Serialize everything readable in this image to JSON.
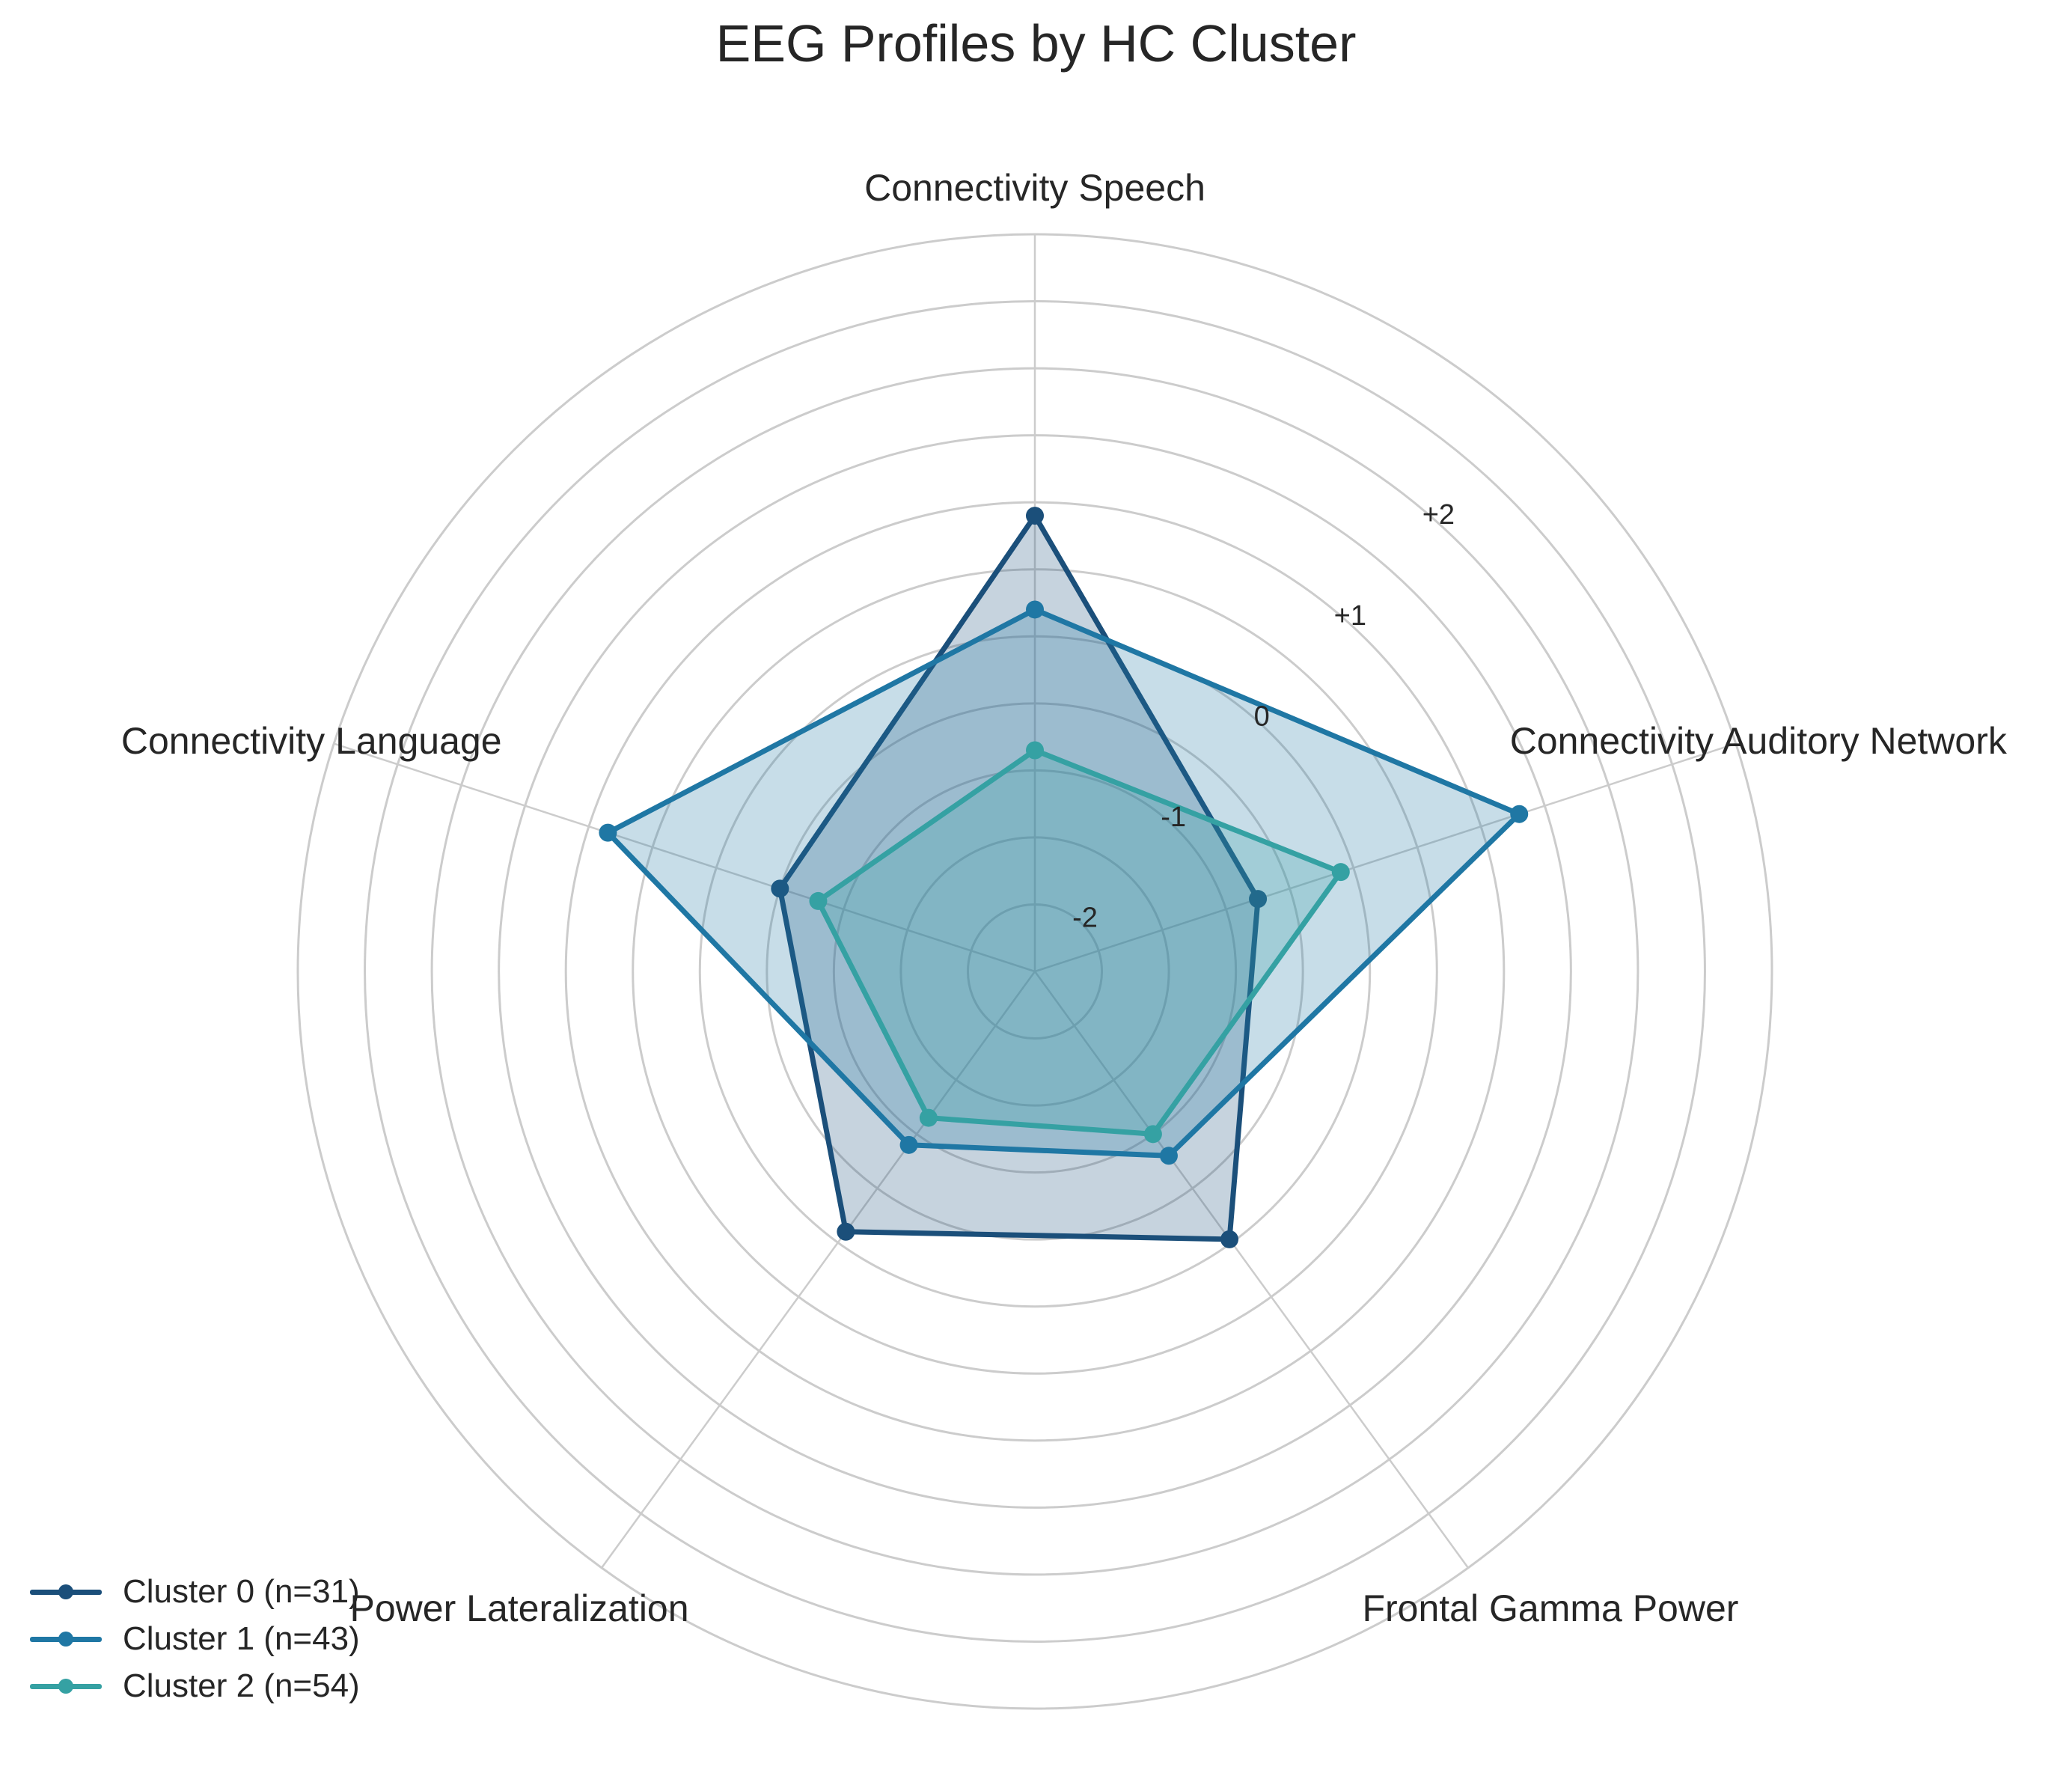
{
  "chart_data": {
    "type": "radar",
    "title": "EEG Profiles by HC Cluster",
    "axes": [
      "Connectivity Speech",
      "Connectivity Auditory Network",
      "Frontal Gamma Power",
      "Power Lateralization",
      "Connectivity Language"
    ],
    "r_ticks": [
      -2,
      -1,
      0,
      1,
      2
    ],
    "r_tick_labels": [
      "-2",
      "-1",
      "0",
      "+1",
      "+2"
    ],
    "r_range": [
      -2.5,
      3.0
    ],
    "grid": true,
    "legend_position": "lower-left",
    "series": [
      {
        "name": "Cluster 0 (n=31)",
        "color": "#1b4f7a",
        "values": [
          0.9,
          -0.75,
          -0.03,
          -0.1,
          -0.5
        ]
      },
      {
        "name": "Cluster 1 (n=43)",
        "color": "#1f77a4",
        "values": [
          0.2,
          1.3,
          -0.8,
          -0.9,
          0.85
        ]
      },
      {
        "name": "Cluster 2 (n=54)",
        "color": "#35a1a3",
        "values": [
          -0.85,
          -0.1,
          -1.0,
          -1.15,
          -0.8
        ]
      }
    ]
  }
}
